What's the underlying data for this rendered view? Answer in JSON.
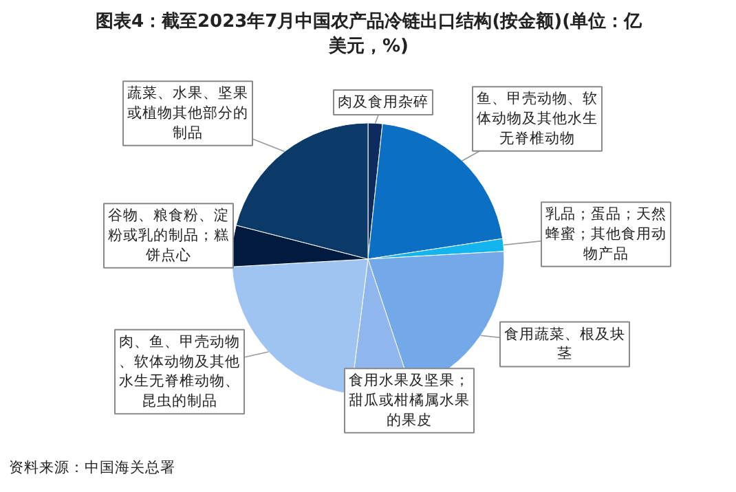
{
  "chart_data": {
    "type": "pie",
    "title": "图表4：截至2023年7月中国农产品冷链出口结构(按金额)(单位：亿美元，%)",
    "categories": [
      "肉及食用杂碎",
      "鱼、甲壳动物、软体动物及其他水生无脊椎动物",
      "乳品；蛋品；天然蜂蜜；其他食用动物产品",
      "食用蔬菜、根及块茎",
      "食用水果及坚果；甜瓜或柑橘属水果的果皮",
      "肉、鱼、甲壳动物、软体动物及其他水生无脊椎动物、昆虫的制品",
      "谷物、粮食粉、淀粉或乳的制品；糕饼点心",
      "蔬菜、水果、坚果或植物其他部分的制品"
    ],
    "values": [
      1.7,
      20.9,
      1.5,
      20.8,
      7.1,
      22.1,
      4.9,
      21.0
    ],
    "colors": [
      "#0d2b5e",
      "#0b6fc4",
      "#14b4ef",
      "#74a9e9",
      "#8fb7ee",
      "#9fc4f2",
      "#031a3f",
      "#0c3a68"
    ],
    "annotations": [
      "资料来源：中国海关总署"
    ]
  }
}
